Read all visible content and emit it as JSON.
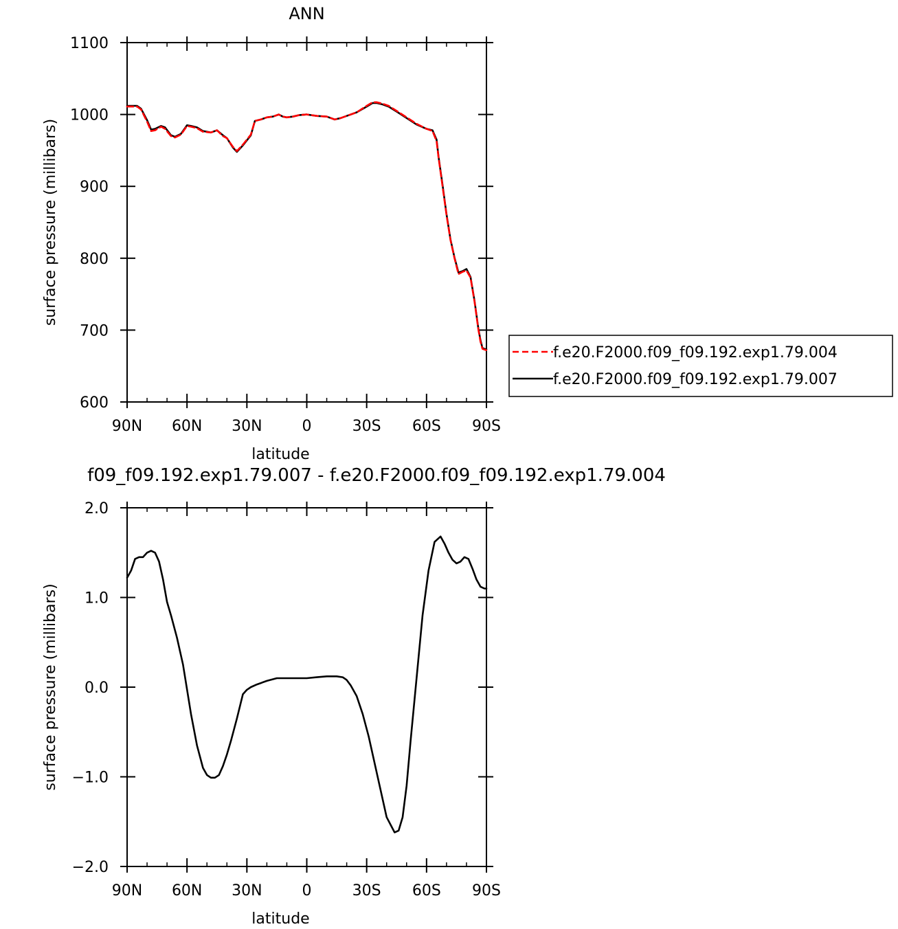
{
  "chart_data": [
    {
      "type": "line",
      "title": "ANN",
      "xlabel": "latitude",
      "ylabel": "surface pressure (millibars)",
      "xlim": [
        90,
        -90
      ],
      "ylim": [
        600,
        1100
      ],
      "xticks": [
        90,
        60,
        30,
        0,
        -30,
        -60,
        -90
      ],
      "xtick_labels": [
        "90N",
        "60N",
        "30N",
        "0",
        "30S",
        "60S",
        "90S"
      ],
      "yticks": [
        600,
        700,
        800,
        900,
        1000,
        1100
      ],
      "ytick_labels": [
        "600",
        "700",
        "800",
        "900",
        "1000",
        "1100"
      ],
      "grid": false,
      "legend_position": "right",
      "series": [
        {
          "name": "f.e20.F2000.f09_f09.192.exp1.79.004",
          "color": "#ff0000",
          "dash": "dashed",
          "x": [
            90,
            85,
            83,
            80,
            78,
            76,
            73,
            71,
            68,
            66,
            63,
            60,
            58,
            55,
            52,
            48,
            45,
            42,
            40,
            37,
            35,
            32,
            28,
            26,
            23,
            20,
            17,
            14,
            12,
            10,
            7,
            4,
            0,
            -5,
            -10,
            -14,
            -17,
            -20,
            -25,
            -30,
            -33,
            -35,
            -38,
            -41,
            -45,
            -50,
            -55,
            -60,
            -63,
            -65,
            -66,
            -68,
            -70,
            -72,
            -74,
            -76,
            -78,
            -80,
            -82,
            -84,
            -86,
            -87,
            -88,
            -90
          ],
          "y": [
            1011,
            1011,
            1007,
            990,
            977,
            978,
            983,
            980,
            970,
            968,
            972,
            984,
            983,
            981,
            976,
            975,
            978,
            970,
            967,
            955,
            949,
            958,
            972,
            991,
            993,
            996,
            997,
            1000,
            997,
            996,
            997,
            999,
            1000,
            998,
            997,
            993,
            995,
            998,
            1003,
            1012,
            1017,
            1017,
            1015,
            1012,
            1005,
            996,
            987,
            980,
            977,
            963,
            940,
            900,
            860,
            825,
            800,
            778,
            781,
            783,
            773,
            740,
            700,
            684,
            674,
            672
          ]
        },
        {
          "name": "f.e20.F2000.f09_f09.192.exp1.79.007",
          "color": "#000000",
          "dash": "solid",
          "x": [
            90,
            85,
            83,
            80,
            78,
            76,
            73,
            71,
            68,
            66,
            63,
            60,
            58,
            55,
            52,
            48,
            45,
            42,
            40,
            37,
            35,
            32,
            28,
            26,
            23,
            20,
            17,
            14,
            12,
            10,
            7,
            4,
            0,
            -5,
            -10,
            -14,
            -17,
            -20,
            -25,
            -30,
            -33,
            -35,
            -38,
            -41,
            -45,
            -50,
            -55,
            -60,
            -63,
            -65,
            -66,
            -68,
            -70,
            -72,
            -74,
            -76,
            -78,
            -80,
            -82,
            -84,
            -86,
            -87,
            -88,
            -90
          ],
          "y": [
            1012,
            1012,
            1008,
            992,
            979,
            980,
            984,
            982,
            971,
            969,
            973,
            985,
            984,
            982,
            977,
            975,
            978,
            971,
            967,
            954,
            948,
            957,
            971,
            991,
            993,
            996,
            997,
            1000,
            997,
            996,
            997,
            999,
            1000,
            998,
            997,
            993,
            995,
            998,
            1003,
            1011,
            1016,
            1016,
            1014,
            1011,
            1004,
            995,
            986,
            980,
            978,
            965,
            941,
            902,
            861,
            826,
            801,
            780,
            782,
            785,
            774,
            741,
            701,
            686,
            675,
            673
          ]
        }
      ]
    },
    {
      "type": "line",
      "title": "f09_f09.192.exp1.79.007 - f.e20.F2000.f09_f09.192.exp1.79.004",
      "xlabel": "latitude",
      "ylabel": "surface pressure (millibars)",
      "xlim": [
        90,
        -90
      ],
      "ylim": [
        -2.0,
        2.0
      ],
      "xticks": [
        90,
        60,
        30,
        0,
        -30,
        -60,
        -90
      ],
      "xtick_labels": [
        "90N",
        "60N",
        "30N",
        "0",
        "30S",
        "60S",
        "90S"
      ],
      "yticks": [
        -2.0,
        -1.0,
        0.0,
        1.0,
        2.0
      ],
      "ytick_labels": [
        "-2.0",
        "-1.0",
        "0.0",
        "1.0",
        "2.0"
      ],
      "grid": false,
      "series": [
        {
          "color": "#000000",
          "dash": "solid",
          "x": [
            90,
            88,
            86,
            84,
            82,
            80,
            78,
            76,
            74,
            72,
            70,
            68,
            65,
            62,
            58,
            55,
            52,
            50,
            48,
            46,
            44,
            42,
            40,
            38,
            35,
            32,
            30,
            28,
            25,
            20,
            15,
            10,
            5,
            0,
            -5,
            -10,
            -15,
            -18,
            -20,
            -22,
            -25,
            -28,
            -31,
            -35,
            -40,
            -44,
            -46,
            -48,
            -50,
            -52,
            -55,
            -58,
            -61,
            -64,
            -67,
            -69,
            -71,
            -73,
            -75,
            -77,
            -79,
            -81,
            -83,
            -85,
            -87,
            -89,
            -90
          ],
          "y": [
            1.22,
            1.3,
            1.43,
            1.45,
            1.45,
            1.5,
            1.52,
            1.5,
            1.4,
            1.2,
            0.95,
            0.8,
            0.55,
            0.25,
            -0.3,
            -0.65,
            -0.9,
            -0.98,
            -1.01,
            -1.01,
            -0.98,
            -0.88,
            -0.75,
            -0.6,
            -0.35,
            -0.08,
            -0.03,
            0.0,
            0.03,
            0.07,
            0.1,
            0.1,
            0.1,
            0.1,
            0.11,
            0.12,
            0.12,
            0.11,
            0.08,
            0.02,
            -0.1,
            -0.3,
            -0.55,
            -0.95,
            -1.45,
            -1.62,
            -1.6,
            -1.45,
            -1.1,
            -0.6,
            0.1,
            0.8,
            1.3,
            1.62,
            1.68,
            1.6,
            1.5,
            1.42,
            1.38,
            1.4,
            1.45,
            1.43,
            1.32,
            1.2,
            1.12,
            1.1,
            1.1
          ]
        }
      ]
    }
  ]
}
